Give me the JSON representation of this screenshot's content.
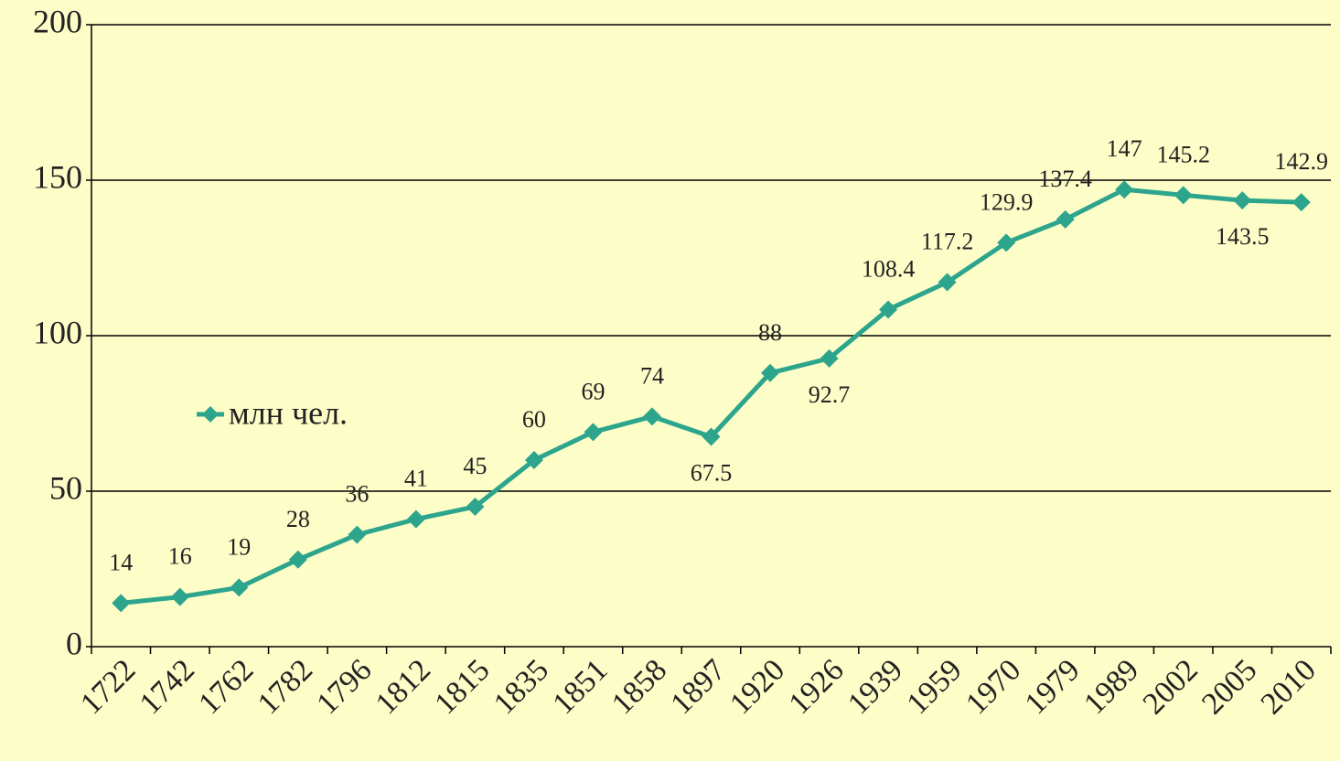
{
  "chart_data": {
    "type": "line",
    "categories": [
      "1722",
      "1742",
      "1762",
      "1782",
      "1796",
      "1812",
      "1815",
      "1835",
      "1851",
      "1858",
      "1897",
      "1920",
      "1926",
      "1939",
      "1959",
      "1970",
      "1979",
      "1989",
      "2002",
      "2005",
      "2010"
    ],
    "series": [
      {
        "name": "млн чел.",
        "color": "#2ca58c",
        "values": [
          14,
          16,
          19,
          28,
          36,
          41,
          45,
          60,
          69,
          74,
          67.5,
          88,
          92.7,
          108.4,
          117.2,
          129.9,
          137.4,
          147,
          145.2,
          143.5,
          142.9
        ]
      }
    ],
    "ylim": [
      0,
      200
    ],
    "yticks": [
      0,
      50,
      100,
      150,
      200
    ],
    "grid": true,
    "legend": "left"
  }
}
